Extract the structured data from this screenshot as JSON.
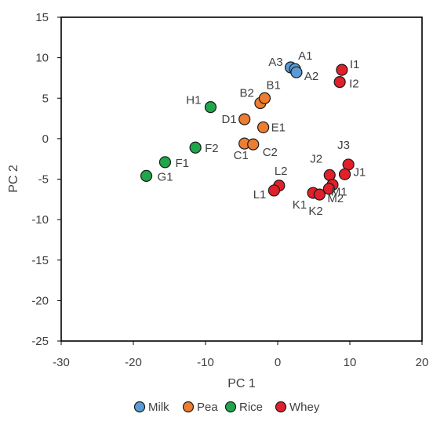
{
  "chart_data": {
    "type": "scatter",
    "xlabel": "PC 1",
    "ylabel": "PC 2",
    "xlim": [
      -30,
      20
    ],
    "ylim": [
      -25,
      15
    ],
    "xticks": [
      -30,
      -20,
      -10,
      0,
      10,
      20
    ],
    "yticks": [
      15,
      10,
      5,
      0,
      -5,
      -10,
      -15,
      -20,
      -25
    ],
    "xtick_labels": [
      "-30",
      "-20",
      "-10",
      "0",
      "10",
      "20"
    ],
    "ytick_labels": [
      "15",
      "10",
      "5",
      "0",
      "-5",
      "-10",
      "-15",
      "-20",
      "-25"
    ],
    "grid": false,
    "legend_position": "bottom",
    "series": [
      {
        "name": "Milk",
        "color": "#5b9bd5",
        "points": [
          {
            "label": "A3",
            "x": 1.8,
            "y": 8.8
          },
          {
            "label": "A1",
            "x": 2.4,
            "y": 8.6
          },
          {
            "label": "A2",
            "x": 2.6,
            "y": 8.2
          }
        ]
      },
      {
        "name": "Pea",
        "color": "#ed7d31",
        "points": [
          {
            "label": "B2",
            "x": -2.4,
            "y": 4.4
          },
          {
            "label": "B1",
            "x": -1.8,
            "y": 5.0
          },
          {
            "label": "D1",
            "x": -4.6,
            "y": 2.4
          },
          {
            "label": "E1",
            "x": -2.0,
            "y": 1.4
          },
          {
            "label": "C1",
            "x": -4.6,
            "y": -0.6
          },
          {
            "label": "C2",
            "x": -3.4,
            "y": -0.7
          }
        ]
      },
      {
        "name": "Rice",
        "color": "#1fa64a",
        "points": [
          {
            "label": "H1",
            "x": -9.3,
            "y": 3.9
          },
          {
            "label": "F2",
            "x": -11.4,
            "y": -1.1
          },
          {
            "label": "F1",
            "x": -15.6,
            "y": -2.9
          },
          {
            "label": "G1",
            "x": -18.2,
            "y": -4.6
          }
        ]
      },
      {
        "name": "Whey",
        "color": "#e0202a",
        "points": [
          {
            "label": "I1",
            "x": 8.9,
            "y": 8.5
          },
          {
            "label": "I2",
            "x": 8.6,
            "y": 7.0
          },
          {
            "label": "J3",
            "x": 9.8,
            "y": -3.2
          },
          {
            "label": "J1",
            "x": 9.3,
            "y": -4.4
          },
          {
            "label": "J2",
            "x": 7.2,
            "y": -4.5
          },
          {
            "label": "M1",
            "x": 7.6,
            "y": -5.7
          },
          {
            "label": "M2",
            "x": 7.1,
            "y": -6.2
          },
          {
            "label": "K1",
            "x": 4.9,
            "y": -6.7
          },
          {
            "label": "K2",
            "x": 5.8,
            "y": -6.9
          },
          {
            "label": "L2",
            "x": 0.2,
            "y": -5.8
          },
          {
            "label": "L1",
            "x": -0.5,
            "y": -6.4
          }
        ]
      }
    ]
  }
}
